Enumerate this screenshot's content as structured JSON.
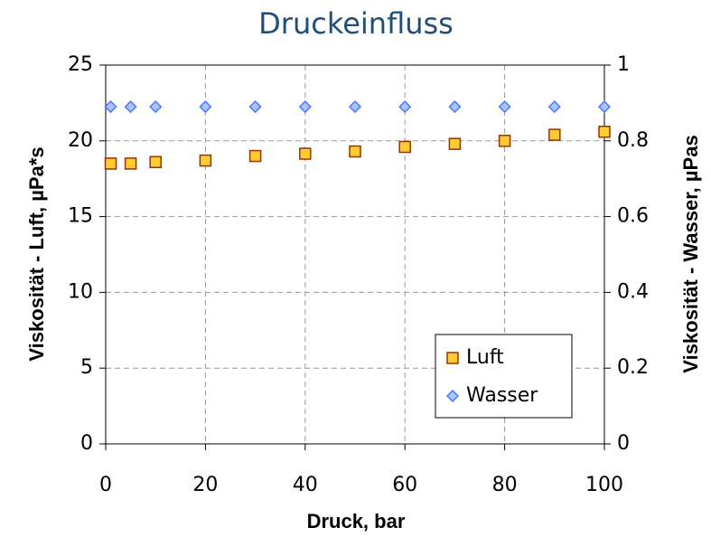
{
  "chart_data": {
    "type": "scatter",
    "title": "Druckeinfluss",
    "xlabel": "Druck, bar",
    "ylabel": "Viskosität - Luft, µPa*s",
    "y2label": "Viskosität - Wasser, µPas",
    "x": [
      1,
      5,
      10,
      20,
      30,
      40,
      50,
      60,
      70,
      80,
      90,
      100
    ],
    "series": [
      {
        "name": "Luft",
        "color": "#ffcc33",
        "marker": "square",
        "values": [
          18.5,
          18.5,
          18.6,
          18.7,
          19.0,
          19.15,
          19.3,
          19.6,
          19.8,
          20.0,
          20.4,
          20.6
        ]
      },
      {
        "name": "Wasser",
        "color": "#4d79ff",
        "marker": "diamond",
        "axis": "y2",
        "values": [
          0.89,
          0.89,
          0.89,
          0.89,
          0.89,
          0.89,
          0.89,
          0.89,
          0.89,
          0.89,
          0.89,
          0.89
        ]
      }
    ],
    "xlim": [
      0,
      100
    ],
    "xticks": [
      0,
      20,
      40,
      60,
      80,
      100
    ],
    "ylim": [
      0,
      25
    ],
    "yticks": [
      0,
      5,
      10,
      15,
      20,
      25
    ],
    "y2lim": [
      0,
      1
    ],
    "y2ticks": [
      0,
      0.2,
      0.4,
      0.6,
      0.8,
      1
    ],
    "grid": true,
    "legend": "lower right"
  }
}
